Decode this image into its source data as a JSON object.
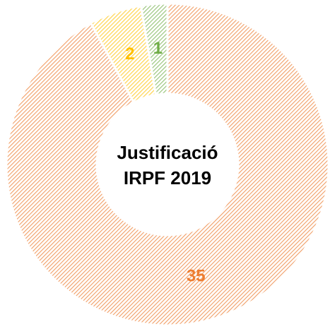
{
  "chart_data": {
    "type": "pie",
    "title": [
      "Justificació",
      "IRPF 2019"
    ],
    "values": [
      35,
      2,
      1
    ],
    "colors": [
      "#ed7d31",
      "#ffc000",
      "#70ad47"
    ]
  }
}
